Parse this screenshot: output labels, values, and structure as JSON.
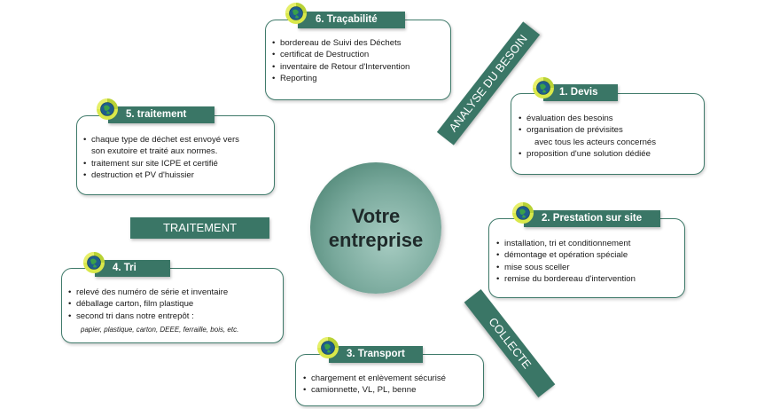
{
  "center": {
    "title": "Votre\nentreprise"
  },
  "bands": {
    "analyse": "ANALYSE DU BESOIN",
    "traitement": "TRAITEMENT",
    "collecte": "COLLECTE"
  },
  "steps": [
    {
      "title": "1. Devis",
      "items": [
        "évaluation des besoins",
        "organisation de prévisites",
        "avec tous les acteurs concernés",
        "proposition d'une solution dédiée"
      ]
    },
    {
      "title": "2. Prestation sur site",
      "items": [
        "installation, tri et conditionnement",
        "démontage et opération spéciale",
        "mise sous sceller",
        "remise du bordereau d'intervention"
      ]
    },
    {
      "title": "3. Transport",
      "items": [
        "chargement et enlèvement sécurisé",
        "camionnette, VL, PL, benne"
      ]
    },
    {
      "title": "4. Tri",
      "items": [
        "relevé des numéro de série et inventaire",
        "déballage carton, film plastique",
        "second tri dans notre entrepôt :",
        "papier, plastique,  carton, DEEE, ferraille, bois, etc."
      ]
    },
    {
      "title": "5. traitement",
      "items": [
        "chaque type de déchet est envoyé vers",
        "son exutoire et traité aux normes.",
        "traitement sur site ICPE et certifié",
        "destruction et PV d'huissier"
      ]
    },
    {
      "title": "6. Traçabilité",
      "items": [
        "bordereau de Suivi des Déchets",
        "certificat de Destruction",
        "inventaire de Retour d'Intervention",
        "Reporting"
      ]
    }
  ],
  "colors": {
    "accent": "#3a7666",
    "border": "#3f7a6a",
    "center": "#79a99c"
  },
  "icons": {
    "step": "globe-recycle-icon"
  }
}
